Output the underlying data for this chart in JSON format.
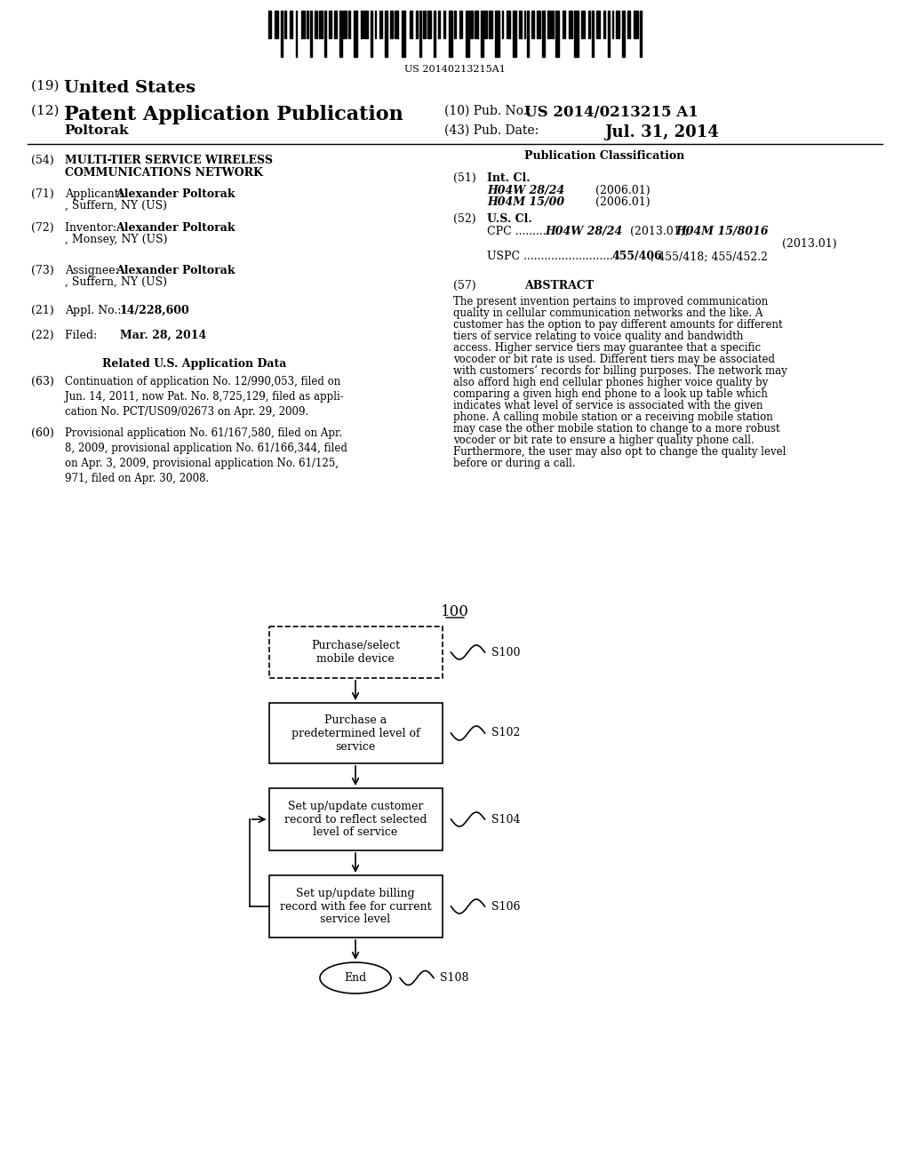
{
  "bg_color": "#ffffff",
  "barcode_text": "US 20140213215A1",
  "header": {
    "line19": "(19) United States",
    "line12": "(12) Patent Application Publication",
    "inventor_name": "Poltorak",
    "line10": "(10) Pub. No.: US 2014/0213215 A1",
    "line43": "(43) Pub. Date:",
    "pub_date": "Jul. 31, 2014"
  },
  "left_col": {
    "item54_label": "(54)",
    "item54_title1": "MULTI-TIER SERVICE WIRELESS",
    "item54_title2": "COMMUNICATIONS NETWORK",
    "item71_label": "(71)",
    "item71_text": "Applicant: ",
    "item71_bold": "Alexander Poltorak",
    "item71_rest": ", Suffern, NY (US)",
    "item72_label": "(72)",
    "item72_text": "Inventor:   ",
    "item72_bold": "Alexander Poltorak",
    "item72_rest": ", Monsey, NY (US)",
    "item73_label": "(73)",
    "item73_text": "Assignee: ",
    "item73_bold": "Alexander Poltorak",
    "item73_rest": ", Suffern, NY (US)",
    "item21_label": "(21)",
    "item21_text": "Appl. No.: ",
    "item21_bold": "14/228,600",
    "item22_label": "(22)",
    "item22_text": "Filed:        ",
    "item22_bold": "Mar. 28, 2014",
    "related_heading": "Related U.S. Application Data",
    "item63_label": "(63)",
    "item63_text": "Continuation of application No. 12/990,053, filed on Jun. 14, 2011, now Pat. No. 8,725,129, filed as appli-cation No. PCT/US09/02673 on Apr. 29, 2009.",
    "item60_label": "(60)",
    "item60_text": "Provisional application No. 61/167,580, filed on Apr. 8, 2009, provisional application No. 61/166,344, filed on Apr. 3, 2009, provisional application No. 61/125,971, filed on Apr. 30, 2008."
  },
  "right_col": {
    "pub_class_heading": "Publication Classification",
    "item51_label": "(51)",
    "item51_heading": "Int. Cl.",
    "item51_class1_italic": "H04W 28/24",
    "item51_class1_date": "(2006.01)",
    "item51_class2_italic": "H04M 15/00",
    "item51_class2_date": "(2006.01)",
    "item52_label": "(52)",
    "item52_heading": "U.S. Cl.",
    "item52_cpc": "CPC .......... ",
    "item52_cpc_bold_italic": "H04W 28/24",
    "item52_cpc_rest": " (2013.01); ",
    "item52_cpc_bold_italic2": "H04M 15/8016",
    "item52_cpc_rest2": "(2013.01)",
    "item52_uspc": "USPC .......................... ",
    "item52_uspc_bold": "455/406",
    "item52_uspc_rest": "; 455/418; 455/452.2",
    "item57_label": "(57)",
    "item57_heading": "ABSTRACT",
    "item57_text": "The present invention pertains to improved communication quality in cellular communication networks and the like. A customer has the option to pay different amounts for different tiers of service relating to voice quality and bandwidth access. Higher service tiers may guarantee that a specific vocoder or bit rate is used. Different tiers may be associated with customers’ records for billing purposes. The network may also afford high end cellular phones higher voice quality by comparing a given high end phone to a look up table which indicates what level of service is associated with the given phone. A calling mobile station or a receiving mobile station may case the other mobile station to change to a more robust vocoder or bit rate to ensure a higher quality phone call. Furthermore, the user may also opt to change the quality level before or during a call."
  },
  "diagram": {
    "label": "100",
    "box1_text": "Purchase/select\nmobile device",
    "box1_label": "S100",
    "box2_text": "Purchase a\npredetermined level of\nservice",
    "box2_label": "S102",
    "box3_text": "Set up/update customer\nrecord to reflect selected\nlevel of service",
    "box3_label": "S104",
    "box4_text": "Set up/update billing\nrecord with fee for current\nservice level",
    "box4_label": "S106",
    "end_text": "End",
    "end_label": "S108"
  }
}
